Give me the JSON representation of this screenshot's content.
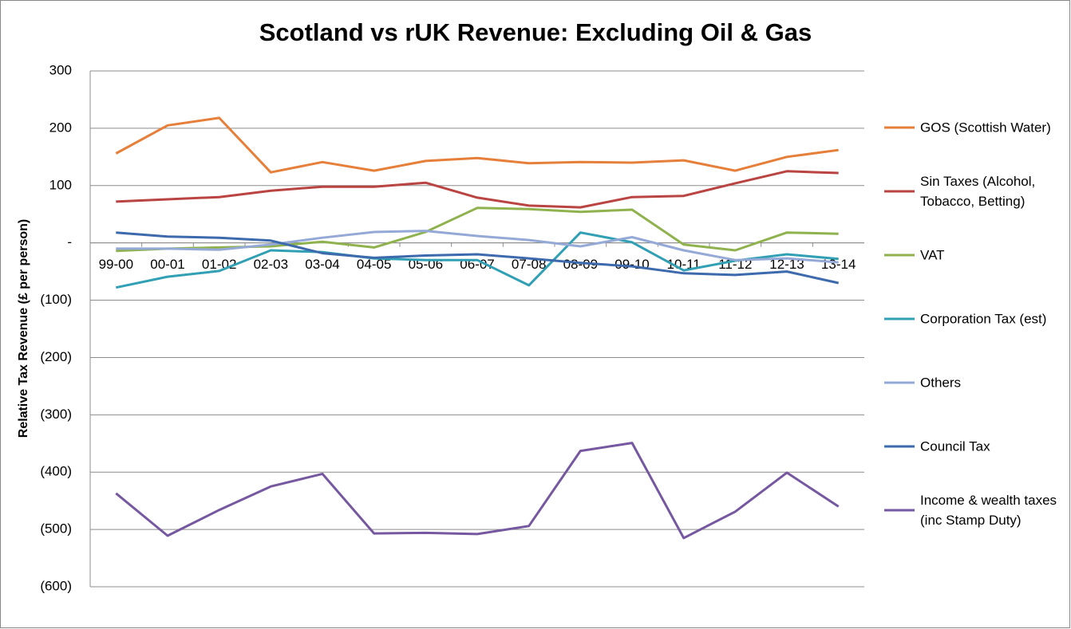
{
  "chart_data": {
    "type": "line",
    "title": "Scotland vs rUK Revenue: Excluding Oil & Gas",
    "y_label": "Relative Tax Revenue (£ per person)",
    "categories": [
      "99-00",
      "00-01",
      "01-02",
      "02-03",
      "03-04",
      "04-05",
      "05-06",
      "06-07",
      "07-08",
      "08-09",
      "09-10",
      "10-11",
      "11-12",
      "12-13",
      "13-14"
    ],
    "series": [
      {
        "name": "GOS (Scottish Water)",
        "color": "#e57f3a",
        "values": [
          156,
          205,
          218,
          123,
          141,
          126,
          143,
          148,
          139,
          141,
          140,
          144,
          126,
          150,
          162
        ]
      },
      {
        "name": "Sin Taxes (Alcohol, Tobacco, Betting)",
        "color": "#b94441",
        "values": [
          72,
          76,
          80,
          91,
          98,
          98,
          105,
          79,
          65,
          62,
          80,
          82,
          104,
          125,
          122
        ]
      },
      {
        "name": "VAT",
        "color": "#8fb24f",
        "values": [
          -14,
          -10,
          -8,
          -6,
          2,
          -8,
          19,
          61,
          59,
          54,
          58,
          -3,
          -13,
          18,
          16
        ]
      },
      {
        "name": "Corporation Tax (est)",
        "color": "#31a0b5",
        "values": [
          -78,
          -59,
          -49,
          -13,
          -16,
          -27,
          -30,
          -30,
          -74,
          18,
          1,
          -48,
          -31,
          -20,
          -28
        ]
      },
      {
        "name": "Others",
        "color": "#95a9d7",
        "values": [
          -10,
          -10,
          -12,
          -3,
          9,
          19,
          21,
          12,
          5,
          -6,
          10,
          -13,
          -30,
          -27,
          -34
        ]
      },
      {
        "name": "Council Tax",
        "color": "#3c6aac",
        "values": [
          18,
          11,
          9,
          4,
          -18,
          -26,
          -22,
          -20,
          -27,
          -35,
          -41,
          -53,
          -56,
          -50,
          -70
        ]
      },
      {
        "name": "Income & wealth taxes (inc Stamp Duty)",
        "color": "#7658a0",
        "values": [
          -437,
          -511,
          -466,
          -425,
          -403,
          -507,
          -506,
          -508,
          -494,
          -363,
          -349,
          -515,
          -469,
          -401,
          -460
        ]
      }
    ],
    "ylim": [
      -600,
      300
    ],
    "yticks": [
      {
        "value": -600,
        "label": "(600)"
      },
      {
        "value": -500,
        "label": "(500)"
      },
      {
        "value": -400,
        "label": "(400)"
      },
      {
        "value": -300,
        "label": "(300)"
      },
      {
        "value": -200,
        "label": "(200)"
      },
      {
        "value": -100,
        "label": "(100)"
      },
      {
        "value": 0,
        "label": "-"
      },
      100,
      200,
      300
    ],
    "grid": true,
    "legend": "right"
  }
}
